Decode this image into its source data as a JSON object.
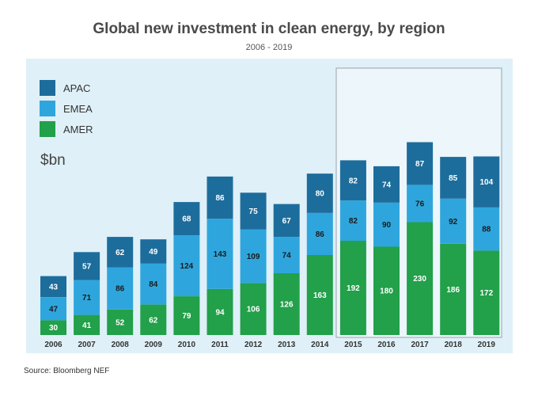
{
  "title": "Global new investment in clean energy, by region",
  "subtitle": "2006 - 2019",
  "source": "Source: Bloomberg NEF",
  "colors": {
    "panel_bg": "#dff0f8",
    "highlight_bg": "#edf6fb",
    "highlight_border": "#9aa3a8",
    "APAC": "#1d6d9c",
    "EMEA": "#2ea6dd",
    "AMER": "#22a04a",
    "label_dark": "#1b1b1b",
    "label_light": "#ffffff"
  },
  "chart_data": {
    "type": "bar",
    "stacked": true,
    "unit_label": "$bn",
    "categories": [
      "2006",
      "2007",
      "2008",
      "2009",
      "2010",
      "2011",
      "2012",
      "2013",
      "2014",
      "2015",
      "2016",
      "2017",
      "2018",
      "2019"
    ],
    "series": [
      {
        "name": "AMER",
        "values": [
          30,
          41,
          52,
          62,
          79,
          94,
          106,
          126,
          163,
          192,
          180,
          230,
          186,
          172
        ]
      },
      {
        "name": "EMEA",
        "values": [
          47,
          71,
          86,
          84,
          124,
          143,
          109,
          74,
          86,
          82,
          90,
          76,
          92,
          88
        ]
      },
      {
        "name": "APAC",
        "values": [
          43,
          57,
          62,
          49,
          68,
          86,
          75,
          67,
          80,
          82,
          74,
          87,
          85,
          104
        ]
      }
    ],
    "legend": [
      "APAC",
      "EMEA",
      "AMER"
    ],
    "legend_position": "top-left",
    "highlighted_categories": [
      "2015",
      "2016",
      "2017",
      "2018",
      "2019"
    ],
    "grid": false
  }
}
